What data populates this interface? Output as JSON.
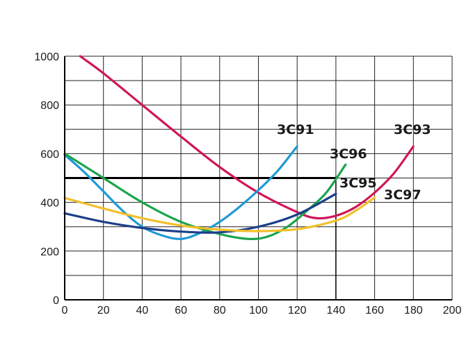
{
  "chart_data": {
    "type": "line",
    "title": "",
    "xlabel": "",
    "ylabel": "",
    "xlim": [
      0,
      200
    ],
    "ylim": [
      0,
      1000
    ],
    "grid": true,
    "x_ticks": [
      "0",
      "20",
      "40",
      "60",
      "80",
      "100",
      "120",
      "140",
      "160",
      "180",
      "200"
    ],
    "y_ticks": [
      "0",
      "200",
      "400",
      "600",
      "800",
      "1000"
    ],
    "series": [
      {
        "name": "3C93",
        "color": "#d0155a",
        "points": [
          [
            8,
            1000
          ],
          [
            20,
            930
          ],
          [
            40,
            800
          ],
          [
            60,
            670
          ],
          [
            80,
            545
          ],
          [
            100,
            440
          ],
          [
            120,
            360
          ],
          [
            130,
            335
          ],
          [
            140,
            345
          ],
          [
            150,
            380
          ],
          [
            160,
            440
          ],
          [
            170,
            520
          ],
          [
            180,
            630
          ]
        ]
      },
      {
        "name": "3C91",
        "color": "#1e9ad6",
        "points": [
          [
            0,
            595
          ],
          [
            10,
            525
          ],
          [
            20,
            445
          ],
          [
            30,
            365
          ],
          [
            40,
            300
          ],
          [
            50,
            265
          ],
          [
            60,
            250
          ],
          [
            70,
            275
          ],
          [
            80,
            320
          ],
          [
            90,
            380
          ],
          [
            100,
            450
          ],
          [
            110,
            530
          ],
          [
            120,
            630
          ]
        ]
      },
      {
        "name": "3C96",
        "color": "#1aa34a",
        "points": [
          [
            0,
            600
          ],
          [
            20,
            500
          ],
          [
            40,
            400
          ],
          [
            60,
            320
          ],
          [
            80,
            270
          ],
          [
            95,
            250
          ],
          [
            105,
            260
          ],
          [
            115,
            300
          ],
          [
            125,
            365
          ],
          [
            135,
            440
          ],
          [
            145,
            555
          ]
        ]
      },
      {
        "name": "3C95",
        "color": "#1c3f8a",
        "points": [
          [
            0,
            355
          ],
          [
            20,
            320
          ],
          [
            40,
            295
          ],
          [
            60,
            280
          ],
          [
            80,
            277
          ],
          [
            100,
            300
          ],
          [
            120,
            350
          ],
          [
            140,
            435
          ]
        ]
      },
      {
        "name": "3C97",
        "color": "#f2bf2a",
        "points": [
          [
            0,
            418
          ],
          [
            20,
            375
          ],
          [
            40,
            335
          ],
          [
            60,
            305
          ],
          [
            80,
            288
          ],
          [
            100,
            282
          ],
          [
            120,
            290
          ],
          [
            140,
            325
          ],
          [
            150,
            365
          ],
          [
            160,
            420
          ]
        ]
      }
    ],
    "reference_lines": [
      {
        "orientation": "horizontal",
        "value": 500,
        "x_range": [
          0,
          140
        ],
        "color": "#000000"
      },
      {
        "orientation": "vertical",
        "value": 140,
        "y_range": [
          0,
          500
        ],
        "color": "#000000"
      }
    ]
  }
}
